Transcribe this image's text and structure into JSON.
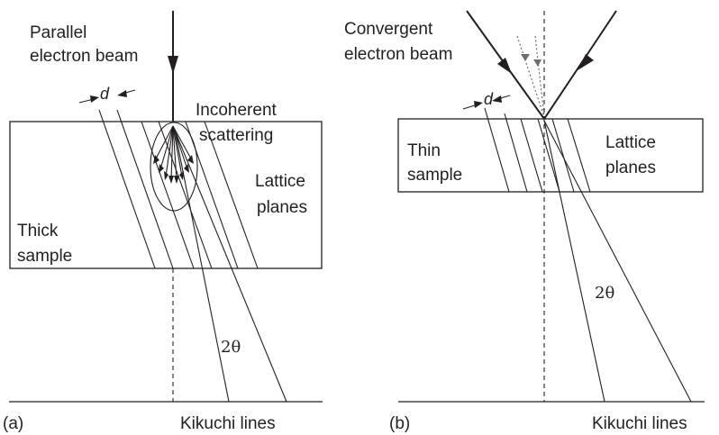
{
  "panel_a": {
    "tag": "(a)",
    "beam_label_line1": "Parallel",
    "beam_label_line2": "electron beam",
    "scatter_label_line1": "Incoherent",
    "scatter_label_line2": "scattering",
    "planes_label_line1": "Lattice",
    "planes_label_line2": "planes",
    "sample_label_line1": "Thick",
    "sample_label_line2": "sample",
    "spacing_label": "d",
    "angle_label": "2θ",
    "screen_label": "Kikuchi lines"
  },
  "panel_b": {
    "tag": "(b)",
    "beam_label_line1": "Convergent",
    "beam_label_line2": "electron beam",
    "planes_label_line1": "Lattice",
    "planes_label_line2": "planes",
    "sample_label_line1": "Thin",
    "sample_label_line2": "sample",
    "spacing_label": "d",
    "angle_label": "2θ",
    "screen_label": "Kikuchi lines"
  }
}
